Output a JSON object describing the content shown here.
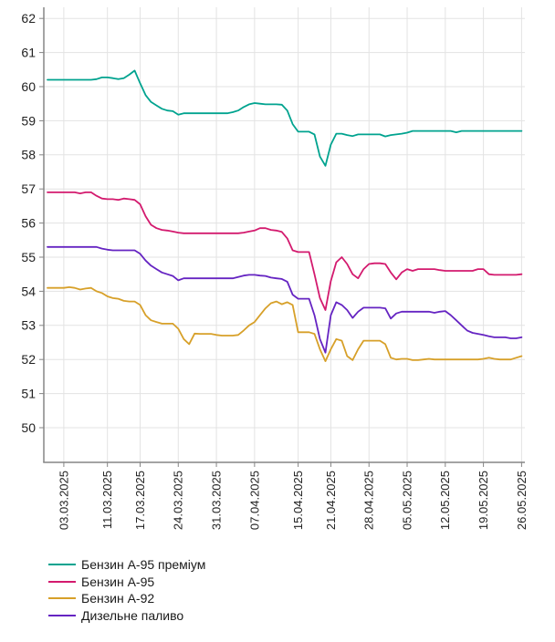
{
  "chart_data": {
    "type": "line",
    "title": "",
    "xlabel": "",
    "ylabel": "",
    "grid": true,
    "legend_position": "bottom-left",
    "ylim": [
      49,
      62.3
    ],
    "y_ticks": [
      62,
      61,
      60,
      59,
      58,
      57,
      56,
      55,
      54,
      53,
      52,
      51,
      50
    ],
    "x_tick_labels": [
      "03.03.2025",
      "11.03.2025",
      "17.03.2025",
      "24.03.2025",
      "31.03.2025",
      "07.04.2025",
      "15.04.2025",
      "21.04.2025",
      "28.04.2025",
      "05.05.2025",
      "12.05.2025",
      "19.05.2025",
      "26.05.2025"
    ],
    "x_tick_days": [
      3,
      11,
      17,
      24,
      31,
      38,
      46,
      52,
      59,
      66,
      73,
      80,
      87
    ],
    "style": {
      "grid_color": "#e3e3e3",
      "axis_color": "#858585",
      "text_color": "#222222",
      "background": "#ffffff"
    },
    "dates": [
      "28.02.2025",
      "01.03.2025",
      "02.03.2025",
      "03.03.2025",
      "04.03.2025",
      "05.03.2025",
      "06.03.2025",
      "07.03.2025",
      "08.03.2025",
      "09.03.2025",
      "10.03.2025",
      "11.03.2025",
      "12.03.2025",
      "13.03.2025",
      "14.03.2025",
      "15.03.2025",
      "16.03.2025",
      "17.03.2025",
      "18.03.2025",
      "19.03.2025",
      "20.03.2025",
      "21.03.2025",
      "22.03.2025",
      "23.03.2025",
      "24.03.2025",
      "25.03.2025",
      "26.03.2025",
      "27.03.2025",
      "28.03.2025",
      "29.03.2025",
      "30.03.2025",
      "31.03.2025",
      "01.04.2025",
      "02.04.2025",
      "03.04.2025",
      "04.04.2025",
      "05.04.2025",
      "06.04.2025",
      "07.04.2025",
      "08.04.2025",
      "09.04.2025",
      "10.04.2025",
      "11.04.2025",
      "12.04.2025",
      "13.04.2025",
      "14.04.2025",
      "15.04.2025",
      "16.04.2025",
      "17.04.2025",
      "18.04.2025",
      "19.04.2025",
      "20.04.2025",
      "21.04.2025",
      "22.04.2025",
      "23.04.2025",
      "24.04.2025",
      "25.04.2025",
      "26.04.2025",
      "27.04.2025",
      "28.04.2025",
      "29.04.2025",
      "30.04.2025",
      "01.05.2025",
      "02.05.2025",
      "03.05.2025",
      "04.05.2025",
      "05.05.2025",
      "06.05.2025",
      "07.05.2025",
      "08.05.2025",
      "09.05.2025",
      "10.05.2025",
      "11.05.2025",
      "12.05.2025",
      "13.05.2025",
      "14.05.2025",
      "15.05.2025",
      "16.05.2025",
      "17.05.2025",
      "18.05.2025",
      "19.05.2025",
      "20.05.2025",
      "21.05.2025",
      "22.05.2025",
      "23.05.2025",
      "24.05.2025",
      "25.05.2025",
      "26.05.2025"
    ],
    "series": [
      {
        "id": "a95-premium",
        "name": "Бензин А-95 преміум",
        "color": "#00a38f",
        "values": [
          60.2,
          60.2,
          60.2,
          60.2,
          60.2,
          60.2,
          60.2,
          60.2,
          60.2,
          60.22,
          60.27,
          60.27,
          60.25,
          60.22,
          60.25,
          60.35,
          60.47,
          60.1,
          59.75,
          59.55,
          59.45,
          59.35,
          59.3,
          59.28,
          59.18,
          59.22,
          59.22,
          59.22,
          59.22,
          59.22,
          59.22,
          59.22,
          59.22,
          59.22,
          59.25,
          59.3,
          59.4,
          59.48,
          59.52,
          59.5,
          59.48,
          59.48,
          59.48,
          59.47,
          59.3,
          58.9,
          58.68,
          58.68,
          58.68,
          58.6,
          57.95,
          57.68,
          58.3,
          58.62,
          58.62,
          58.58,
          58.55,
          58.6,
          58.6,
          58.6,
          58.6,
          58.6,
          58.54,
          58.58,
          58.6,
          58.62,
          58.65,
          58.7,
          58.7,
          58.7,
          58.7,
          58.7,
          58.7,
          58.7,
          58.7,
          58.66,
          58.7,
          58.7,
          58.7,
          58.7,
          58.7,
          58.7,
          58.7,
          58.7,
          58.7,
          58.7,
          58.7,
          58.7
        ]
      },
      {
        "id": "a95",
        "name": "Бензин А-95",
        "color": "#d31a6e",
        "values": [
          56.9,
          56.9,
          56.9,
          56.9,
          56.9,
          56.9,
          56.87,
          56.9,
          56.9,
          56.8,
          56.72,
          56.7,
          56.7,
          56.68,
          56.72,
          56.7,
          56.68,
          56.55,
          56.2,
          55.95,
          55.85,
          55.8,
          55.78,
          55.75,
          55.72,
          55.7,
          55.7,
          55.7,
          55.7,
          55.7,
          55.7,
          55.7,
          55.7,
          55.7,
          55.7,
          55.7,
          55.72,
          55.75,
          55.78,
          55.85,
          55.85,
          55.8,
          55.78,
          55.74,
          55.55,
          55.2,
          55.15,
          55.15,
          55.15,
          54.5,
          53.8,
          53.45,
          54.3,
          54.85,
          55.0,
          54.8,
          54.5,
          54.38,
          54.65,
          54.8,
          54.82,
          54.82,
          54.8,
          54.55,
          54.35,
          54.55,
          54.65,
          54.6,
          54.65,
          54.65,
          54.65,
          54.65,
          54.62,
          54.6,
          54.6,
          54.6,
          54.6,
          54.6,
          54.6,
          54.65,
          54.65,
          54.5,
          54.48,
          54.48,
          54.48,
          54.48,
          54.48,
          54.5
        ]
      },
      {
        "id": "a92",
        "name": "Бензин А-92",
        "color": "#d7a029",
        "values": [
          54.1,
          54.1,
          54.1,
          54.1,
          54.12,
          54.1,
          54.05,
          54.08,
          54.1,
          54.0,
          53.95,
          53.85,
          53.8,
          53.78,
          53.72,
          53.7,
          53.7,
          53.6,
          53.3,
          53.15,
          53.1,
          53.05,
          53.05,
          53.05,
          52.9,
          52.6,
          52.45,
          52.76,
          52.75,
          52.75,
          52.75,
          52.72,
          52.7,
          52.7,
          52.7,
          52.72,
          52.85,
          53.0,
          53.1,
          53.3,
          53.5,
          53.65,
          53.7,
          53.62,
          53.68,
          53.6,
          52.8,
          52.8,
          52.8,
          52.75,
          52.3,
          51.95,
          52.3,
          52.6,
          52.55,
          52.1,
          51.98,
          52.3,
          52.55,
          52.55,
          52.55,
          52.55,
          52.45,
          52.05,
          52.0,
          52.02,
          52.02,
          51.98,
          51.98,
          52.0,
          52.02,
          52.0,
          52.0,
          52.0,
          52.0,
          52.0,
          52.0,
          52.0,
          52.0,
          52.0,
          52.02,
          52.05,
          52.02,
          52.0,
          52.0,
          52.0,
          52.05,
          52.1
        ]
      },
      {
        "id": "diesel",
        "name": "Дизельне паливо",
        "color": "#6524c2",
        "values": [
          55.3,
          55.3,
          55.3,
          55.3,
          55.3,
          55.3,
          55.3,
          55.3,
          55.3,
          55.3,
          55.25,
          55.22,
          55.2,
          55.2,
          55.2,
          55.2,
          55.2,
          55.1,
          54.9,
          54.75,
          54.65,
          54.55,
          54.5,
          54.45,
          54.32,
          54.38,
          54.38,
          54.38,
          54.38,
          54.38,
          54.38,
          54.38,
          54.38,
          54.38,
          54.38,
          54.42,
          54.46,
          54.48,
          54.48,
          54.46,
          54.45,
          54.4,
          54.38,
          54.36,
          54.28,
          53.9,
          53.78,
          53.78,
          53.78,
          53.3,
          52.6,
          52.2,
          53.3,
          53.68,
          53.6,
          53.45,
          53.22,
          53.4,
          53.52,
          53.52,
          53.52,
          53.52,
          53.5,
          53.2,
          53.35,
          53.4,
          53.4,
          53.4,
          53.4,
          53.4,
          53.4,
          53.37,
          53.4,
          53.42,
          53.3,
          53.15,
          53.0,
          52.85,
          52.78,
          52.75,
          52.72,
          52.68,
          52.65,
          52.65,
          52.65,
          52.62,
          52.62,
          52.65
        ]
      }
    ]
  }
}
